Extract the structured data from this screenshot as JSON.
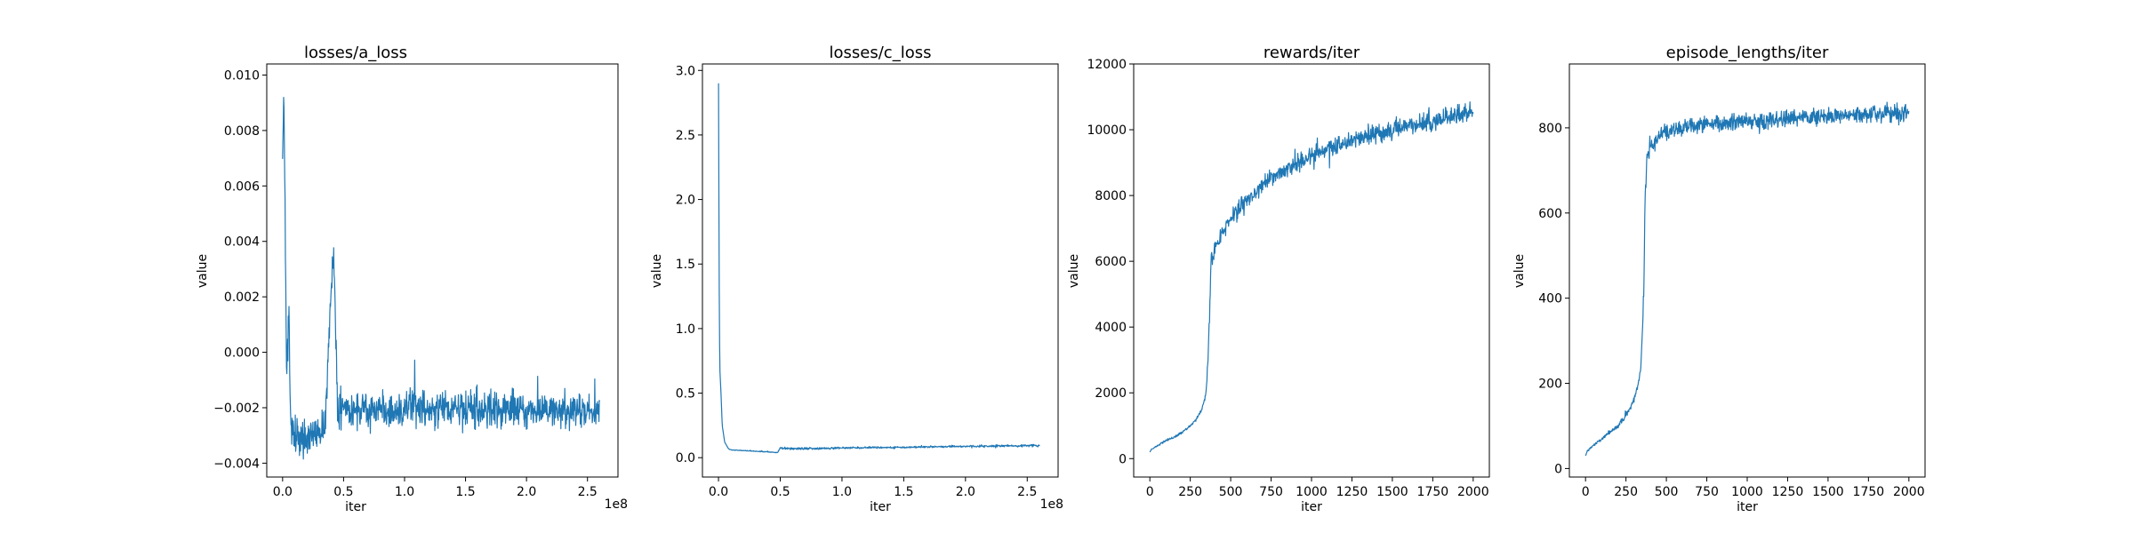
{
  "figure": {
    "panels": [
      {
        "title": "losses/a_loss",
        "xlabel": "iter",
        "ylabel": "value",
        "x_offset_label": "1e8",
        "xticks": [
          "0.0",
          "0.5",
          "1.0",
          "1.5",
          "2.0",
          "2.5"
        ],
        "yticks": [
          "−0.004",
          "−0.002",
          "0.000",
          "0.002",
          "0.004",
          "0.006",
          "0.008",
          "0.010"
        ]
      },
      {
        "title": "losses/c_loss",
        "xlabel": "iter",
        "ylabel": "value",
        "x_offset_label": "1e8",
        "xticks": [
          "0.0",
          "0.5",
          "1.0",
          "1.5",
          "2.0",
          "2.5"
        ],
        "yticks": [
          "0.0",
          "0.5",
          "1.0",
          "1.5",
          "2.0",
          "2.5",
          "3.0"
        ]
      },
      {
        "title": "rewards/iter",
        "xlabel": "iter",
        "ylabel": "value",
        "x_offset_label": "",
        "xticks": [
          "0",
          "250",
          "500",
          "750",
          "1000",
          "1250",
          "1500",
          "1750",
          "2000"
        ],
        "yticks": [
          "0",
          "2000",
          "4000",
          "6000",
          "8000",
          "10000",
          "12000"
        ]
      },
      {
        "title": "episode_lengths/iter",
        "xlabel": "iter",
        "ylabel": "value",
        "x_offset_label": "",
        "xticks": [
          "0",
          "250",
          "500",
          "750",
          "1000",
          "1250",
          "1500",
          "1750",
          "2000"
        ],
        "yticks": [
          "0",
          "200",
          "400",
          "600",
          "800"
        ]
      }
    ]
  },
  "chart_data": [
    {
      "type": "line",
      "title": "losses/a_loss",
      "xlabel": "iter",
      "ylabel": "value",
      "x_scale_note": "1e8",
      "xlim": [
        -13000000.0,
        275000000.0
      ],
      "ylim": [
        -0.0045,
        0.0104
      ],
      "xticks": [
        0,
        50000000.0,
        100000000.0,
        150000000.0,
        200000000.0,
        250000000.0
      ],
      "yticks": [
        -0.004,
        -0.002,
        0,
        0.002,
        0.004,
        0.006,
        0.008,
        0.01
      ],
      "grid": false,
      "color": "#1f77b4",
      "series": [
        {
          "x": [
            0.0,
            1000000.0,
            2000000.0,
            3000000.0,
            5000000.0,
            7000000.0,
            10000000.0,
            15000000.0,
            20000000.0,
            25000000.0,
            30000000.0,
            35000000.0,
            40000000.0,
            42000000.0,
            45000000.0,
            50000000.0,
            60000000.0,
            70000000.0,
            80000000.0,
            90000000.0,
            100000000.0,
            110000000.0,
            120000000.0,
            130000000.0,
            140000000.0,
            150000000.0,
            160000000.0,
            170000000.0,
            180000000.0,
            190000000.0,
            200000000.0,
            210000000.0,
            220000000.0,
            230000000.0,
            240000000.0,
            250000000.0,
            260000000.0
          ],
          "y": [
            0.007,
            0.0095,
            0.0053,
            -0.0005,
            0.0008,
            -0.0028,
            -0.003,
            -0.0032,
            -0.003,
            -0.0029,
            -0.0028,
            -0.0026,
            0.0024,
            0.0038,
            -0.002,
            -0.0022,
            -0.0021,
            -0.0022,
            -0.002,
            -0.0021,
            -0.0021,
            -0.002,
            -0.0021,
            -0.002,
            -0.0021,
            -0.002,
            -0.0021,
            -0.002,
            -0.0021,
            -0.0021,
            -0.0021,
            -0.002,
            -0.0021,
            -0.0021,
            -0.0021,
            -0.0021,
            -0.0021
          ],
          "band": [
            0.0005,
            0.001,
            0.001,
            0.0015,
            0.0015,
            0.0009,
            0.0009,
            0.0009,
            0.0009,
            0.0009,
            0.001,
            0.001,
            0.0008,
            0.0008,
            0.0009,
            0.001,
            0.001,
            0.001,
            0.0009,
            0.001,
            0.001,
            0.001,
            0.0009,
            0.001,
            0.0009,
            0.0009,
            0.0009,
            0.001,
            0.0009,
            0.0009,
            0.0009,
            0.0009,
            0.0009,
            0.0009,
            0.0009,
            0.0009,
            0.0009
          ]
        }
      ]
    },
    {
      "type": "line",
      "title": "losses/c_loss",
      "xlabel": "iter",
      "ylabel": "value",
      "x_scale_note": "1e8",
      "xlim": [
        -13000000.0,
        275000000.0
      ],
      "ylim": [
        -0.15,
        3.05
      ],
      "xticks": [
        0,
        50000000.0,
        100000000.0,
        150000000.0,
        200000000.0,
        250000000.0
      ],
      "yticks": [
        0,
        0.5,
        1.0,
        1.5,
        2.0,
        2.5,
        3.0
      ],
      "grid": false,
      "color": "#1f77b4",
      "series": [
        {
          "x": [
            0.0,
            500000.0,
            1000000.0,
            2000000.0,
            3000000.0,
            5000000.0,
            8000000.0,
            10000000.0,
            20000000.0,
            30000000.0,
            40000000.0,
            48000000.0,
            50000000.0,
            55000000.0,
            60000000.0,
            70000000.0,
            80000000.0,
            100000000.0,
            120000000.0,
            150000000.0,
            180000000.0,
            200000000.0,
            220000000.0,
            240000000.0,
            260000000.0
          ],
          "y": [
            2.9,
            1.4,
            0.7,
            0.5,
            0.25,
            0.12,
            0.07,
            0.06,
            0.055,
            0.05,
            0.045,
            0.04,
            0.08,
            0.07,
            0.07,
            0.072,
            0.072,
            0.075,
            0.078,
            0.08,
            0.085,
            0.088,
            0.09,
            0.093,
            0.095
          ],
          "band": [
            0,
            0,
            0,
            0,
            0,
            0,
            0,
            0.004,
            0.004,
            0.005,
            0.005,
            0.005,
            0.02,
            0.015,
            0.012,
            0.012,
            0.012,
            0.01,
            0.01,
            0.01,
            0.01,
            0.01,
            0.012,
            0.012,
            0.014
          ]
        }
      ]
    },
    {
      "type": "line",
      "title": "rewards/iter",
      "xlabel": "iter",
      "ylabel": "value",
      "xlim": [
        -100,
        2100
      ],
      "ylim": [
        -560,
        12000
      ],
      "xticks": [
        0,
        250,
        500,
        750,
        1000,
        1250,
        1500,
        1750,
        2000
      ],
      "yticks": [
        0,
        2000,
        4000,
        6000,
        8000,
        10000,
        12000
      ],
      "grid": false,
      "color": "#1f77b4",
      "series": [
        {
          "x": [
            0,
            10,
            50,
            100,
            150,
            200,
            250,
            280,
            300,
            320,
            340,
            350,
            360,
            370,
            375,
            380,
            385,
            390,
            400,
            450,
            500,
            600,
            700,
            800,
            900,
            1000,
            1100,
            1200,
            1300,
            1400,
            1500,
            1600,
            1700,
            1800,
            1900,
            2000
          ],
          "y": [
            200,
            280,
            400,
            550,
            650,
            800,
            1000,
            1150,
            1300,
            1500,
            1800,
            2200,
            3000,
            4500,
            5500,
            6300,
            6000,
            5900,
            6300,
            6900,
            7300,
            7900,
            8300,
            8700,
            8950,
            9200,
            9400,
            9600,
            9750,
            9900,
            10000,
            10100,
            10200,
            10300,
            10400,
            10550
          ],
          "band": [
            0,
            20,
            30,
            40,
            50,
            60,
            60,
            80,
            80,
            100,
            120,
            150,
            200,
            300,
            300,
            300,
            350,
            350,
            350,
            350,
            350,
            400,
            400,
            400,
            400,
            400,
            400,
            400,
            400,
            400,
            400,
            400,
            400,
            400,
            400,
            450
          ]
        }
      ]
    },
    {
      "type": "line",
      "title": "episode_lengths/iter",
      "xlabel": "iter",
      "ylabel": "value",
      "xlim": [
        -100,
        2100
      ],
      "ylim": [
        -20,
        950
      ],
      "xticks": [
        0,
        250,
        500,
        750,
        1000,
        1250,
        1500,
        1750,
        2000
      ],
      "yticks": [
        0,
        200,
        400,
        600,
        800
      ],
      "grid": false,
      "color": "#1f77b4",
      "series": [
        {
          "x": [
            0,
            10,
            50,
            100,
            150,
            200,
            250,
            280,
            300,
            320,
            340,
            350,
            360,
            365,
            370,
            375,
            380,
            390,
            400,
            450,
            500,
            600,
            700,
            800,
            900,
            1000,
            1100,
            1200,
            1300,
            1400,
            1500,
            1600,
            1700,
            1800,
            1900,
            2000
          ],
          "y": [
            30,
            40,
            55,
            70,
            85,
            100,
            125,
            145,
            165,
            190,
            230,
            300,
            420,
            550,
            650,
            700,
            730,
            740,
            760,
            780,
            790,
            800,
            805,
            810,
            812,
            815,
            818,
            820,
            822,
            824,
            826,
            828,
            830,
            832,
            834,
            836
          ],
          "band": [
            0,
            3,
            4,
            5,
            6,
            6,
            8,
            8,
            10,
            10,
            15,
            20,
            30,
            30,
            30,
            30,
            30,
            30,
            30,
            30,
            30,
            30,
            30,
            30,
            30,
            30,
            30,
            30,
            30,
            30,
            30,
            30,
            30,
            30,
            30,
            30
          ]
        }
      ]
    }
  ]
}
